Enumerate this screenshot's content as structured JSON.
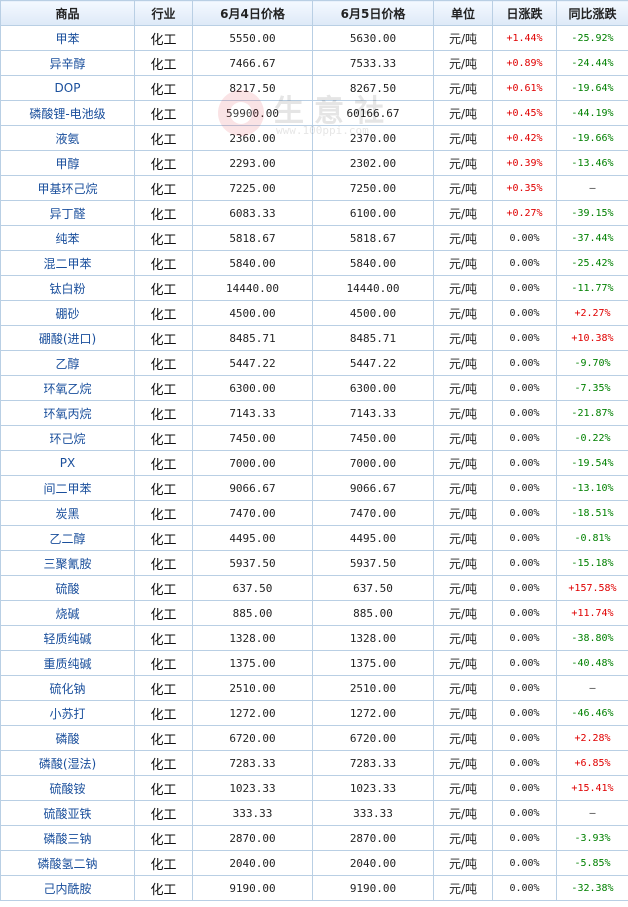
{
  "headers": [
    "商品",
    "行业",
    "6月4日价格",
    "6月5日价格",
    "单位",
    "日涨跌",
    "同比涨跌"
  ],
  "watermark": {
    "brand": "生意社",
    "url": "www.100ppi.com"
  },
  "colors": {
    "up": "#e00000",
    "down": "#008000",
    "link": "#1a4f9c",
    "border": "#b9cfe4"
  },
  "rows": [
    {
      "name": "甲苯",
      "industry": "化工",
      "price_prev": "5550.00",
      "price_curr": "5630.00",
      "unit": "元/吨",
      "daily_change": "+1.44%",
      "yoy_change": "-25.92%"
    },
    {
      "name": "异辛醇",
      "industry": "化工",
      "price_prev": "7466.67",
      "price_curr": "7533.33",
      "unit": "元/吨",
      "daily_change": "+0.89%",
      "yoy_change": "-24.44%"
    },
    {
      "name": "DOP",
      "industry": "化工",
      "price_prev": "8217.50",
      "price_curr": "8267.50",
      "unit": "元/吨",
      "daily_change": "+0.61%",
      "yoy_change": "-19.64%"
    },
    {
      "name": "磷酸锂-电池级",
      "industry": "化工",
      "price_prev": "59900.00",
      "price_curr": "60166.67",
      "unit": "元/吨",
      "daily_change": "+0.45%",
      "yoy_change": "-44.19%"
    },
    {
      "name": "液氨",
      "industry": "化工",
      "price_prev": "2360.00",
      "price_curr": "2370.00",
      "unit": "元/吨",
      "daily_change": "+0.42%",
      "yoy_change": "-19.66%"
    },
    {
      "name": "甲醇",
      "industry": "化工",
      "price_prev": "2293.00",
      "price_curr": "2302.00",
      "unit": "元/吨",
      "daily_change": "+0.39%",
      "yoy_change": "-13.46%"
    },
    {
      "name": "甲基环己烷",
      "industry": "化工",
      "price_prev": "7225.00",
      "price_curr": "7250.00",
      "unit": "元/吨",
      "daily_change": "+0.35%",
      "yoy_change": "—"
    },
    {
      "name": "异丁醛",
      "industry": "化工",
      "price_prev": "6083.33",
      "price_curr": "6100.00",
      "unit": "元/吨",
      "daily_change": "+0.27%",
      "yoy_change": "-39.15%"
    },
    {
      "name": "纯苯",
      "industry": "化工",
      "price_prev": "5818.67",
      "price_curr": "5818.67",
      "unit": "元/吨",
      "daily_change": "0.00%",
      "yoy_change": "-37.44%"
    },
    {
      "name": "混二甲苯",
      "industry": "化工",
      "price_prev": "5840.00",
      "price_curr": "5840.00",
      "unit": "元/吨",
      "daily_change": "0.00%",
      "yoy_change": "-25.42%"
    },
    {
      "name": "钛白粉",
      "industry": "化工",
      "price_prev": "14440.00",
      "price_curr": "14440.00",
      "unit": "元/吨",
      "daily_change": "0.00%",
      "yoy_change": "-11.77%"
    },
    {
      "name": "硼砂",
      "industry": "化工",
      "price_prev": "4500.00",
      "price_curr": "4500.00",
      "unit": "元/吨",
      "daily_change": "0.00%",
      "yoy_change": "+2.27%"
    },
    {
      "name": "硼酸(进口)",
      "industry": "化工",
      "price_prev": "8485.71",
      "price_curr": "8485.71",
      "unit": "元/吨",
      "daily_change": "0.00%",
      "yoy_change": "+10.38%"
    },
    {
      "name": "乙醇",
      "industry": "化工",
      "price_prev": "5447.22",
      "price_curr": "5447.22",
      "unit": "元/吨",
      "daily_change": "0.00%",
      "yoy_change": "-9.70%"
    },
    {
      "name": "环氧乙烷",
      "industry": "化工",
      "price_prev": "6300.00",
      "price_curr": "6300.00",
      "unit": "元/吨",
      "daily_change": "0.00%",
      "yoy_change": "-7.35%"
    },
    {
      "name": "环氧丙烷",
      "industry": "化工",
      "price_prev": "7143.33",
      "price_curr": "7143.33",
      "unit": "元/吨",
      "daily_change": "0.00%",
      "yoy_change": "-21.87%"
    },
    {
      "name": "环己烷",
      "industry": "化工",
      "price_prev": "7450.00",
      "price_curr": "7450.00",
      "unit": "元/吨",
      "daily_change": "0.00%",
      "yoy_change": "-0.22%"
    },
    {
      "name": "PX",
      "industry": "化工",
      "price_prev": "7000.00",
      "price_curr": "7000.00",
      "unit": "元/吨",
      "daily_change": "0.00%",
      "yoy_change": "-19.54%"
    },
    {
      "name": "间二甲苯",
      "industry": "化工",
      "price_prev": "9066.67",
      "price_curr": "9066.67",
      "unit": "元/吨",
      "daily_change": "0.00%",
      "yoy_change": "-13.10%"
    },
    {
      "name": "炭黑",
      "industry": "化工",
      "price_prev": "7470.00",
      "price_curr": "7470.00",
      "unit": "元/吨",
      "daily_change": "0.00%",
      "yoy_change": "-18.51%"
    },
    {
      "name": "乙二醇",
      "industry": "化工",
      "price_prev": "4495.00",
      "price_curr": "4495.00",
      "unit": "元/吨",
      "daily_change": "0.00%",
      "yoy_change": "-0.81%"
    },
    {
      "name": "三聚氰胺",
      "industry": "化工",
      "price_prev": "5937.50",
      "price_curr": "5937.50",
      "unit": "元/吨",
      "daily_change": "0.00%",
      "yoy_change": "-15.18%"
    },
    {
      "name": "硫酸",
      "industry": "化工",
      "price_prev": "637.50",
      "price_curr": "637.50",
      "unit": "元/吨",
      "daily_change": "0.00%",
      "yoy_change": "+157.58%"
    },
    {
      "name": "烧碱",
      "industry": "化工",
      "price_prev": "885.00",
      "price_curr": "885.00",
      "unit": "元/吨",
      "daily_change": "0.00%",
      "yoy_change": "+11.74%"
    },
    {
      "name": "轻质纯碱",
      "industry": "化工",
      "price_prev": "1328.00",
      "price_curr": "1328.00",
      "unit": "元/吨",
      "daily_change": "0.00%",
      "yoy_change": "-38.80%"
    },
    {
      "name": "重质纯碱",
      "industry": "化工",
      "price_prev": "1375.00",
      "price_curr": "1375.00",
      "unit": "元/吨",
      "daily_change": "0.00%",
      "yoy_change": "-40.48%"
    },
    {
      "name": "硫化钠",
      "industry": "化工",
      "price_prev": "2510.00",
      "price_curr": "2510.00",
      "unit": "元/吨",
      "daily_change": "0.00%",
      "yoy_change": "—"
    },
    {
      "name": "小苏打",
      "industry": "化工",
      "price_prev": "1272.00",
      "price_curr": "1272.00",
      "unit": "元/吨",
      "daily_change": "0.00%",
      "yoy_change": "-46.46%"
    },
    {
      "name": "磷酸",
      "industry": "化工",
      "price_prev": "6720.00",
      "price_curr": "6720.00",
      "unit": "元/吨",
      "daily_change": "0.00%",
      "yoy_change": "+2.28%"
    },
    {
      "name": "磷酸(湿法)",
      "industry": "化工",
      "price_prev": "7283.33",
      "price_curr": "7283.33",
      "unit": "元/吨",
      "daily_change": "0.00%",
      "yoy_change": "+6.85%"
    },
    {
      "name": "硫酸铵",
      "industry": "化工",
      "price_prev": "1023.33",
      "price_curr": "1023.33",
      "unit": "元/吨",
      "daily_change": "0.00%",
      "yoy_change": "+15.41%"
    },
    {
      "name": "硫酸亚铁",
      "industry": "化工",
      "price_prev": "333.33",
      "price_curr": "333.33",
      "unit": "元/吨",
      "daily_change": "0.00%",
      "yoy_change": "—"
    },
    {
      "name": "磷酸三钠",
      "industry": "化工",
      "price_prev": "2870.00",
      "price_curr": "2870.00",
      "unit": "元/吨",
      "daily_change": "0.00%",
      "yoy_change": "-3.93%"
    },
    {
      "name": "磷酸氢二钠",
      "industry": "化工",
      "price_prev": "2040.00",
      "price_curr": "2040.00",
      "unit": "元/吨",
      "daily_change": "0.00%",
      "yoy_change": "-5.85%"
    },
    {
      "name": "己内酰胺",
      "industry": "化工",
      "price_prev": "9190.00",
      "price_curr": "9190.00",
      "unit": "元/吨",
      "daily_change": "0.00%",
      "yoy_change": "-32.38%"
    }
  ]
}
